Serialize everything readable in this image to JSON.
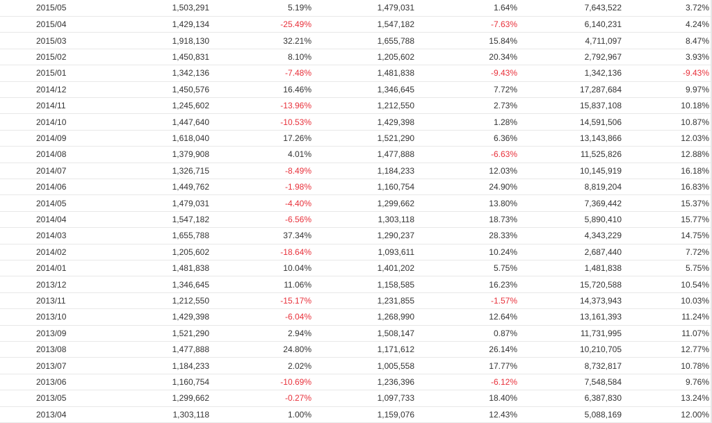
{
  "table": {
    "rows": [
      [
        "2015/05",
        "1,503,291",
        "5.19%",
        "1,479,031",
        "1.64%",
        "7,643,522",
        "3.72%"
      ],
      [
        "2015/04",
        "1,429,134",
        "-25.49%",
        "1,547,182",
        "-7.63%",
        "6,140,231",
        "4.24%"
      ],
      [
        "2015/03",
        "1,918,130",
        "32.21%",
        "1,655,788",
        "15.84%",
        "4,711,097",
        "8.47%"
      ],
      [
        "2015/02",
        "1,450,831",
        "8.10%",
        "1,205,602",
        "20.34%",
        "2,792,967",
        "3.93%"
      ],
      [
        "2015/01",
        "1,342,136",
        "-7.48%",
        "1,481,838",
        "-9.43%",
        "1,342,136",
        "-9.43%"
      ],
      [
        "2014/12",
        "1,450,576",
        "16.46%",
        "1,346,645",
        "7.72%",
        "17,287,684",
        "9.97%"
      ],
      [
        "2014/11",
        "1,245,602",
        "-13.96%",
        "1,212,550",
        "2.73%",
        "15,837,108",
        "10.18%"
      ],
      [
        "2014/10",
        "1,447,640",
        "-10.53%",
        "1,429,398",
        "1.28%",
        "14,591,506",
        "10.87%"
      ],
      [
        "2014/09",
        "1,618,040",
        "17.26%",
        "1,521,290",
        "6.36%",
        "13,143,866",
        "12.03%"
      ],
      [
        "2014/08",
        "1,379,908",
        "4.01%",
        "1,477,888",
        "-6.63%",
        "11,525,826",
        "12.88%"
      ],
      [
        "2014/07",
        "1,326,715",
        "-8.49%",
        "1,184,233",
        "12.03%",
        "10,145,919",
        "16.18%"
      ],
      [
        "2014/06",
        "1,449,762",
        "-1.98%",
        "1,160,754",
        "24.90%",
        "8,819,204",
        "16.83%"
      ],
      [
        "2014/05",
        "1,479,031",
        "-4.40%",
        "1,299,662",
        "13.80%",
        "7,369,442",
        "15.37%"
      ],
      [
        "2014/04",
        "1,547,182",
        "-6.56%",
        "1,303,118",
        "18.73%",
        "5,890,410",
        "15.77%"
      ],
      [
        "2014/03",
        "1,655,788",
        "37.34%",
        "1,290,237",
        "28.33%",
        "4,343,229",
        "14.75%"
      ],
      [
        "2014/02",
        "1,205,602",
        "-18.64%",
        "1,093,611",
        "10.24%",
        "2,687,440",
        "7.72%"
      ],
      [
        "2014/01",
        "1,481,838",
        "10.04%",
        "1,401,202",
        "5.75%",
        "1,481,838",
        "5.75%"
      ],
      [
        "2013/12",
        "1,346,645",
        "11.06%",
        "1,158,585",
        "16.23%",
        "15,720,588",
        "10.54%"
      ],
      [
        "2013/11",
        "1,212,550",
        "-15.17%",
        "1,231,855",
        "-1.57%",
        "14,373,943",
        "10.03%"
      ],
      [
        "2013/10",
        "1,429,398",
        "-6.04%",
        "1,268,990",
        "12.64%",
        "13,161,393",
        "11.24%"
      ],
      [
        "2013/09",
        "1,521,290",
        "2.94%",
        "1,508,147",
        "0.87%",
        "11,731,995",
        "11.07%"
      ],
      [
        "2013/08",
        "1,477,888",
        "24.80%",
        "1,171,612",
        "26.14%",
        "10,210,705",
        "12.77%"
      ],
      [
        "2013/07",
        "1,184,233",
        "2.02%",
        "1,005,558",
        "17.77%",
        "8,732,817",
        "10.78%"
      ],
      [
        "2013/06",
        "1,160,754",
        "-10.69%",
        "1,236,396",
        "-6.12%",
        "7,548,584",
        "9.76%"
      ],
      [
        "2013/05",
        "1,299,662",
        "-0.27%",
        "1,097,733",
        "18.40%",
        "6,387,830",
        "13.24%"
      ],
      [
        "2013/04",
        "1,303,118",
        "1.00%",
        "1,159,076",
        "12.43%",
        "5,088,169",
        "12.00%"
      ]
    ]
  },
  "colors": {
    "text": "#333333",
    "negative": "#e8303a",
    "row_border": "#e8e8e8"
  }
}
